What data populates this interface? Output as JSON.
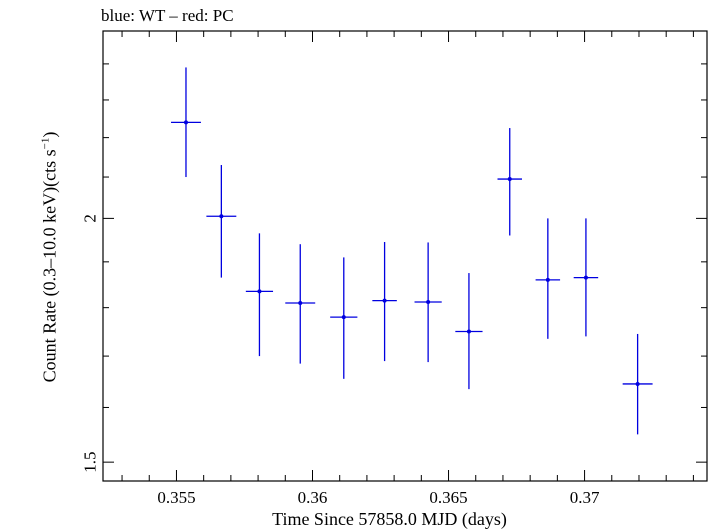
{
  "chart_data": {
    "type": "scatter",
    "title": "blue: WT – red: PC",
    "xlabel": "Time Since 57858.0 MJD (days)",
    "ylabel": {
      "main": "Count Rate (0.3–10.0 keV)(cts s",
      "sup": "−1",
      "end": ")"
    },
    "xlim": [
      0.3523,
      0.3745
    ],
    "ylim": [
      1.467,
      2.495
    ],
    "y_scale": "log",
    "x_ticks": [
      {
        "value": 0.355,
        "label": "0.355"
      },
      {
        "value": 0.36,
        "label": "0.36"
      },
      {
        "value": 0.365,
        "label": "0.365"
      },
      {
        "value": 0.37,
        "label": "0.37"
      }
    ],
    "y_ticks": [
      {
        "value": 1.5,
        "label": "1.5"
      },
      {
        "value": 2,
        "label": "2"
      }
    ],
    "series": [
      {
        "color": "#0000e0",
        "points": [
          {
            "x": 0.35535,
            "xerr": 0.00055,
            "y": 2.24,
            "ylo": 2.1,
            "yhi": 2.39
          },
          {
            "x": 0.35665,
            "xerr": 0.00055,
            "y": 2.005,
            "ylo": 1.865,
            "yhi": 2.13
          },
          {
            "x": 0.35805,
            "xerr": 0.0005,
            "y": 1.835,
            "ylo": 1.7,
            "yhi": 1.965
          },
          {
            "x": 0.35955,
            "xerr": 0.00055,
            "y": 1.81,
            "ylo": 1.685,
            "yhi": 1.94
          },
          {
            "x": 0.36115,
            "xerr": 0.0005,
            "y": 1.78,
            "ylo": 1.655,
            "yhi": 1.91
          },
          {
            "x": 0.36265,
            "xerr": 0.00045,
            "y": 1.815,
            "ylo": 1.69,
            "yhi": 1.945
          },
          {
            "x": 0.36425,
            "xerr": 0.0005,
            "y": 1.812,
            "ylo": 1.688,
            "yhi": 1.944
          },
          {
            "x": 0.36575,
            "xerr": 0.0005,
            "y": 1.75,
            "ylo": 1.635,
            "yhi": 1.875
          },
          {
            "x": 0.36725,
            "xerr": 0.00045,
            "y": 2.095,
            "ylo": 1.96,
            "yhi": 2.225
          },
          {
            "x": 0.36865,
            "xerr": 0.00045,
            "y": 1.86,
            "ylo": 1.735,
            "yhi": 2.0
          },
          {
            "x": 0.37005,
            "xerr": 0.00045,
            "y": 1.865,
            "ylo": 1.74,
            "yhi": 2.0
          },
          {
            "x": 0.37195,
            "xerr": 0.00055,
            "y": 1.645,
            "ylo": 1.55,
            "yhi": 1.745
          }
        ]
      }
    ]
  }
}
